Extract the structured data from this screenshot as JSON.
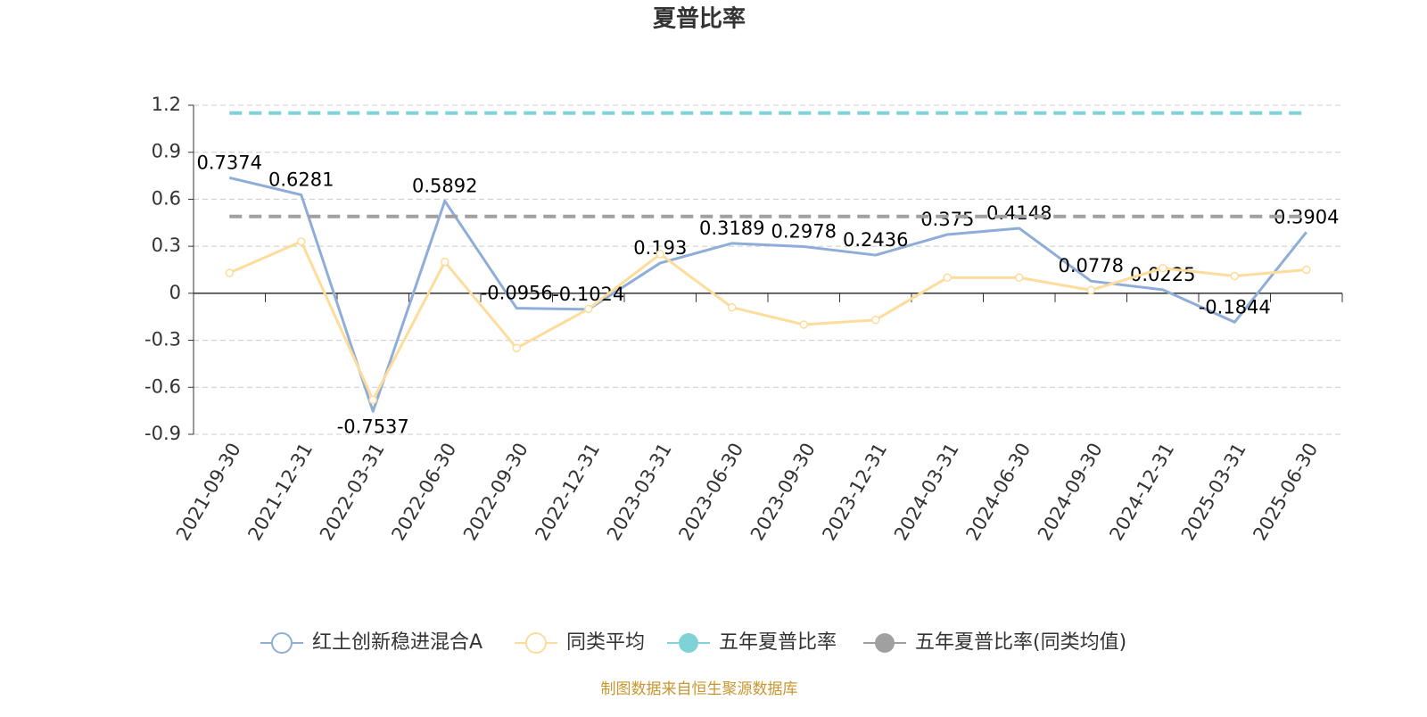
{
  "chart_data": {
    "type": "line",
    "title": "夏普比率",
    "categories": [
      "2021-09-30",
      "2021-12-31",
      "2022-03-31",
      "2022-06-30",
      "2022-09-30",
      "2022-12-31",
      "2023-03-31",
      "2023-06-30",
      "2023-09-30",
      "2023-12-31",
      "2024-03-31",
      "2024-06-30",
      "2024-09-30",
      "2024-12-31",
      "2025-03-31",
      "2025-06-30"
    ],
    "series": [
      {
        "name": "红土创新稳进混合A",
        "color": "#8eadd8",
        "symbols": false,
        "data_labels": true,
        "values": [
          0.7374,
          0.6281,
          -0.7537,
          0.5892,
          -0.0956,
          -0.1024,
          0.193,
          0.3189,
          0.2978,
          0.2436,
          0.375,
          0.4148,
          0.0778,
          0.0225,
          -0.1844,
          0.3904
        ]
      },
      {
        "name": "同类平均",
        "color": "#fddc9c",
        "symbols": true,
        "data_labels": false,
        "values": [
          0.13,
          0.33,
          -0.68,
          0.2,
          -0.35,
          -0.1,
          0.25,
          -0.09,
          -0.2,
          -0.17,
          0.1,
          0.1,
          0.02,
          0.16,
          0.11,
          0.15
        ]
      },
      {
        "name": "五年夏普比率",
        "color": "#7fd3d6",
        "type": "hline",
        "value": 1.15
      },
      {
        "name": "五年夏普比率(同类均值)",
        "color": "#a0a0a0",
        "type": "hline",
        "value": 0.49
      }
    ],
    "ylim": [
      -0.9,
      1.2
    ],
    "yticks": [
      -0.9,
      -0.6,
      -0.3,
      0,
      0.3,
      0.6,
      0.9,
      1.2
    ],
    "grid": true,
    "legend": "bottom",
    "source": "制图数据来自恒生聚源数据库"
  }
}
